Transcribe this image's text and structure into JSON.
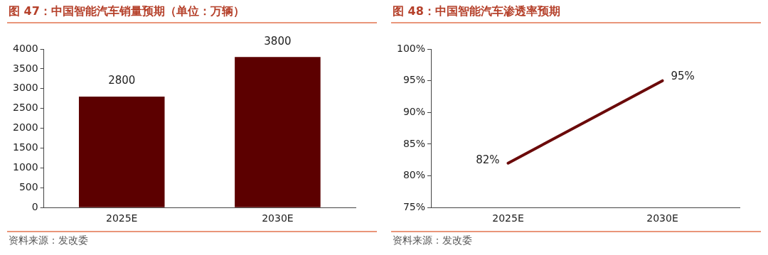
{
  "chart_data": [
    {
      "type": "bar",
      "title": "图 47：中国智能汽车销量预期（单位：万辆）",
      "categories": [
        "2025E",
        "2030E"
      ],
      "values": [
        2800,
        3800
      ],
      "color": "#5c0000",
      "ylim": [
        0,
        4000
      ],
      "yticks": [
        0,
        500,
        1000,
        1500,
        2000,
        2500,
        3000,
        3500,
        4000
      ],
      "data_labels": true,
      "grid": false,
      "legend": false,
      "annotations": [
        "资料来源：发改委"
      ]
    },
    {
      "type": "line",
      "title": "图 48：中国智能汽车渗透率预期",
      "categories": [
        "2025E",
        "2030E"
      ],
      "values": [
        82,
        95
      ],
      "value_labels": [
        "82%",
        "95%"
      ],
      "color": "#6b0a0a",
      "ylim": [
        75,
        100
      ],
      "yticks": [
        {
          "value": 75,
          "label": "75%"
        },
        {
          "value": 80,
          "label": "80%"
        },
        {
          "value": 85,
          "label": "85%"
        },
        {
          "value": 90,
          "label": "90%"
        },
        {
          "value": 95,
          "label": "95%"
        },
        {
          "value": 100,
          "label": "100%"
        }
      ],
      "marker": "none",
      "line_style": "solid",
      "grid": false,
      "legend": false,
      "annotations": [
        "资料来源：发改委"
      ]
    }
  ]
}
